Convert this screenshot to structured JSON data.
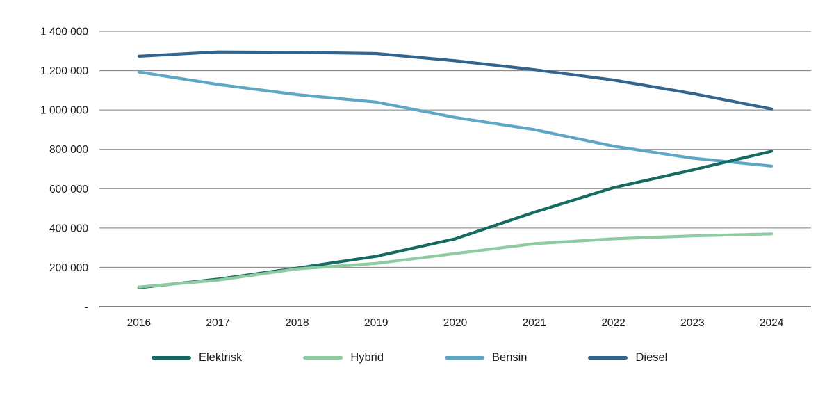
{
  "chart_data": {
    "type": "line",
    "title": "",
    "xlabel": "",
    "ylabel": "",
    "categories": [
      "2016",
      "2017",
      "2018",
      "2019",
      "2020",
      "2021",
      "2022",
      "2023",
      "2024"
    ],
    "series": [
      {
        "name": "Elektrisk",
        "color": "#156a61",
        "values": [
          97000,
          140000,
          196000,
          256000,
          345000,
          480000,
          605000,
          695000,
          790000
        ]
      },
      {
        "name": "Hybrid",
        "color": "#8fcba1",
        "values": [
          100000,
          135000,
          192000,
          220000,
          270000,
          320000,
          345000,
          360000,
          370000
        ]
      },
      {
        "name": "Bensin",
        "color": "#5ea7c4",
        "values": [
          1193000,
          1130000,
          1078000,
          1040000,
          962000,
          900000,
          816000,
          755000,
          715000
        ]
      },
      {
        "name": "Diesel",
        "color": "#33648e",
        "values": [
          1273000,
          1295000,
          1293000,
          1287000,
          1250000,
          1205000,
          1152000,
          1084000,
          1005000
        ]
      }
    ],
    "ylim": [
      0,
      1400000
    ],
    "ytick_interval": 200000,
    "ytick_labels": [
      "-",
      "200 000",
      "400 000",
      "600 000",
      "800 000",
      "1 000 000",
      "1 200 000",
      "1 400 000"
    ],
    "grid": "horizontal",
    "legend_position": "bottom",
    "number_format": "space-grouped",
    "colors": {
      "gridline": "#7d7d7d",
      "axisline": "#595959",
      "text": "#1a1a1a"
    }
  }
}
